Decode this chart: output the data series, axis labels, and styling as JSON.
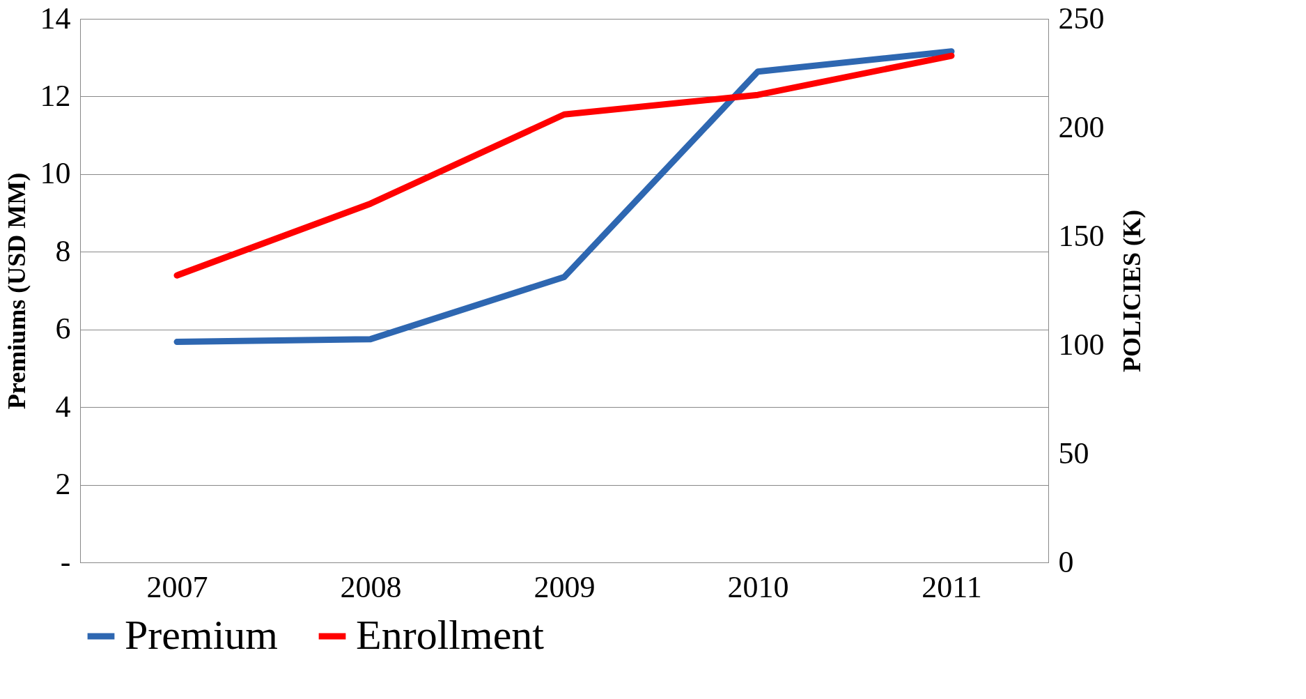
{
  "chart_data": {
    "type": "line",
    "categories": [
      "2007",
      "2008",
      "2009",
      "2010",
      "2011"
    ],
    "series": [
      {
        "name": "Premium",
        "color": "#2e67b1",
        "values": [
          5.68,
          5.75,
          7.35,
          12.64,
          13.16
        ]
      },
      {
        "name": "Enrollment",
        "color": "#ff0000",
        "values": [
          132,
          165,
          206,
          215,
          233
        ],
        "axis": "y2"
      }
    ],
    "ylabel": "Premiums (USD  MM)",
    "y2label": "POLICIES  (K)",
    "ylim": [
      0,
      14
    ],
    "yticks": [
      {
        "value": 0,
        "label": "-"
      },
      2,
      4,
      6,
      8,
      10,
      12,
      14
    ],
    "y2lim": [
      0,
      250
    ],
    "y2ticks": [
      0,
      50,
      100,
      150,
      200,
      250
    ],
    "grid": "y",
    "legend": "bottom",
    "line_style": "solid"
  }
}
